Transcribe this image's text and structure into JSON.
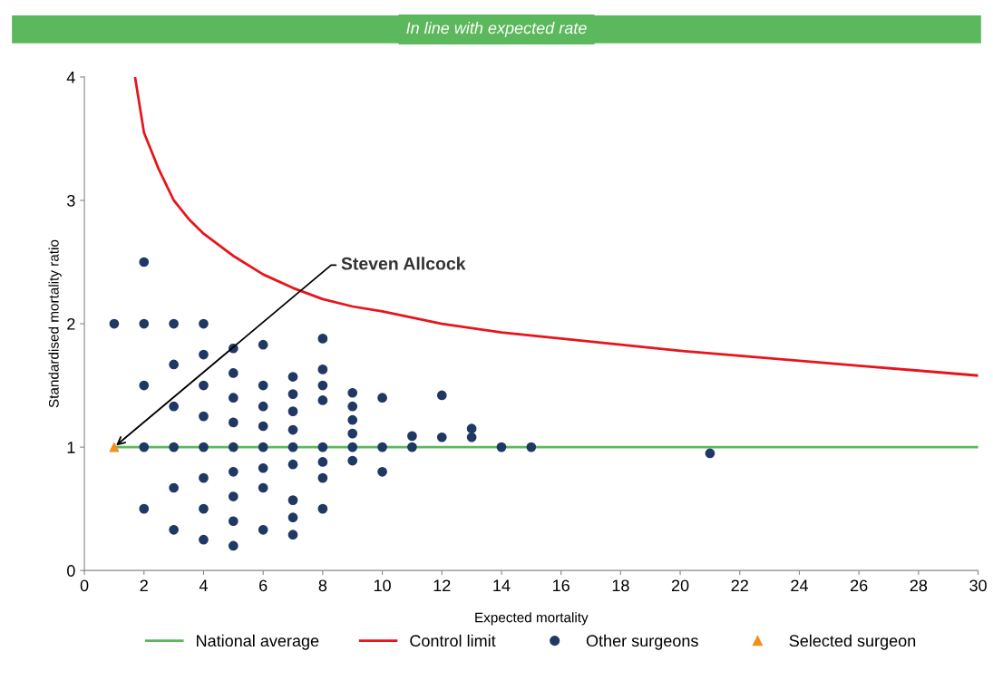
{
  "chart_data": {
    "type": "scatter",
    "title": "In line with expected rate",
    "xlabel": "Expected mortality",
    "ylabel": "Standardised mortality ratio",
    "xlim": [
      0,
      30
    ],
    "xticks": [
      0,
      2,
      4,
      6,
      8,
      10,
      12,
      14,
      16,
      18,
      20,
      22,
      24,
      26,
      28,
      30
    ],
    "ylim": [
      0,
      4
    ],
    "yticks": [
      0,
      1,
      2,
      3,
      4
    ],
    "grid": false,
    "legend": "bottom",
    "series": [
      {
        "name": "National average",
        "type": "line",
        "color": "#5cb85c",
        "line_style": "solid",
        "marker": "none",
        "x": [
          1,
          30
        ],
        "values": [
          1,
          1
        ]
      },
      {
        "name": "Control limit",
        "type": "line",
        "color": "#e8141c",
        "line_style": "solid",
        "marker": "none",
        "x": [
          1.7,
          2,
          2.5,
          3,
          3.5,
          4,
          5,
          6,
          7,
          8,
          9,
          10,
          12,
          14,
          16,
          18,
          20,
          22,
          24,
          26,
          28,
          30
        ],
        "values": [
          4,
          3.55,
          3.25,
          3.0,
          2.85,
          2.73,
          2.55,
          2.4,
          2.29,
          2.2,
          2.14,
          2.1,
          2.0,
          1.93,
          1.88,
          1.83,
          1.78,
          1.74,
          1.7,
          1.66,
          1.62,
          1.58
        ]
      },
      {
        "name": "Other surgeons",
        "color": "#1f3864",
        "marker": "circle",
        "x": [
          1,
          2,
          2,
          2,
          2,
          2,
          3,
          3,
          3,
          3,
          3,
          3,
          4,
          4,
          4,
          4,
          4,
          4,
          4,
          4,
          5,
          5,
          5,
          5,
          5,
          5,
          5,
          5,
          5,
          6,
          6,
          6,
          6,
          6,
          6,
          6,
          6,
          7,
          7,
          7,
          7,
          7,
          7,
          7,
          7,
          7,
          8,
          8,
          8,
          8,
          8,
          8,
          8,
          8,
          9,
          9,
          9,
          9,
          9,
          9,
          10,
          10,
          10,
          11,
          11,
          12,
          12,
          13,
          13,
          14,
          15,
          21
        ],
        "values": [
          2,
          2.5,
          2,
          1.5,
          1,
          0.5,
          2,
          1.67,
          1.33,
          1,
          0.67,
          0.33,
          2,
          1.75,
          1.5,
          1.25,
          1,
          0.75,
          0.5,
          0.25,
          1.8,
          1.6,
          1.4,
          1.2,
          1,
          0.8,
          0.6,
          0.4,
          0.2,
          1.83,
          1.5,
          1.33,
          1.17,
          1,
          0.83,
          0.67,
          0.33,
          1.57,
          1.43,
          1.29,
          1.14,
          1,
          0.86,
          0.57,
          0.43,
          0.29,
          1.88,
          1.63,
          1.5,
          1.38,
          1,
          0.88,
          0.75,
          0.5,
          1.44,
          1.33,
          1.22,
          1.11,
          1,
          0.89,
          1.4,
          1,
          0.8,
          1.09,
          1,
          1.42,
          1.08,
          1.15,
          1.08,
          1,
          1,
          0.95
        ]
      },
      {
        "name": "Selected surgeon",
        "color": "#f0901e",
        "marker": "triangle",
        "x": [
          1
        ],
        "values": [
          1
        ]
      }
    ],
    "annotations": [
      {
        "text": "Steven Allcock",
        "x": 1,
        "y": 1
      }
    ]
  }
}
